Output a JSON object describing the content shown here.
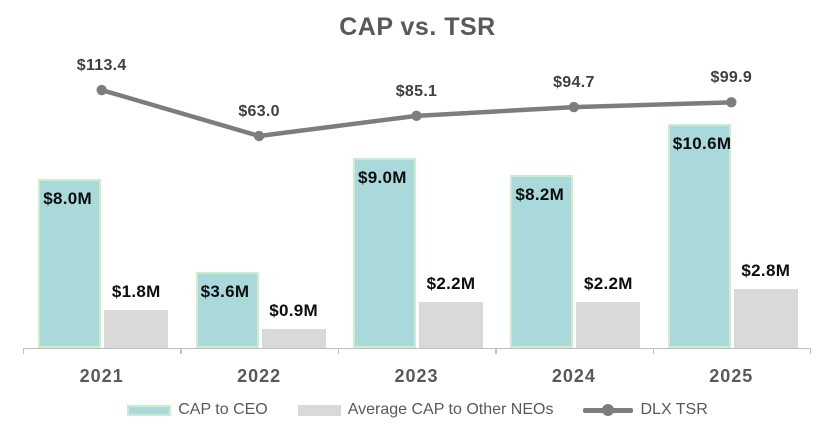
{
  "title": "CAP vs. TSR",
  "colors": {
    "cap_ceo_fill": "#aad9db",
    "cap_ceo_border": "#cdeccb",
    "neo_fill": "#d9d9d9",
    "line": "#7d7d7d",
    "heading_text": "#595959",
    "axis": "#bfbfbf",
    "bar_label_text": "#0d0d0d",
    "line_label_text": "#404040"
  },
  "legend": {
    "position": "bottom",
    "items": [
      {
        "label": "CAP to CEO",
        "type": "bar-swatch"
      },
      {
        "label": "Average CAP to Other NEOs",
        "type": "bar-swatch"
      },
      {
        "label": "DLX TSR",
        "type": "line-swatch"
      }
    ]
  },
  "chart_data": {
    "type": "bar",
    "subtype": "combo-bar-line",
    "title": "CAP vs. TSR",
    "categories": [
      "2021",
      "2022",
      "2023",
      "2024",
      "2025"
    ],
    "series": [
      {
        "name": "CAP to CEO",
        "type": "bar",
        "values": [
          8.0,
          3.6,
          9.0,
          8.2,
          10.6
        ],
        "labels": [
          "$8.0M",
          "$3.6M",
          "$9.0M",
          "$8.2M",
          "$10.6M"
        ],
        "unit": "USD millions"
      },
      {
        "name": "Average CAP to Other NEOs",
        "type": "bar",
        "values": [
          1.8,
          0.9,
          2.2,
          2.2,
          2.8
        ],
        "labels": [
          "$1.8M",
          "$0.9M",
          "$2.2M",
          "$2.2M",
          "$2.8M"
        ],
        "unit": "USD millions"
      },
      {
        "name": "DLX TSR",
        "type": "line",
        "values": [
          113.4,
          63.0,
          85.1,
          94.7,
          99.9
        ],
        "labels": [
          "$113.4",
          "$63.0",
          "$85.1",
          "$94.7",
          "$99.9"
        ],
        "unit": "USD"
      }
    ],
    "xlabel": "",
    "ylabel": "",
    "y_axis_visible": false,
    "gridlines": false,
    "data_labels_visible": true,
    "legend_position": "bottom"
  }
}
